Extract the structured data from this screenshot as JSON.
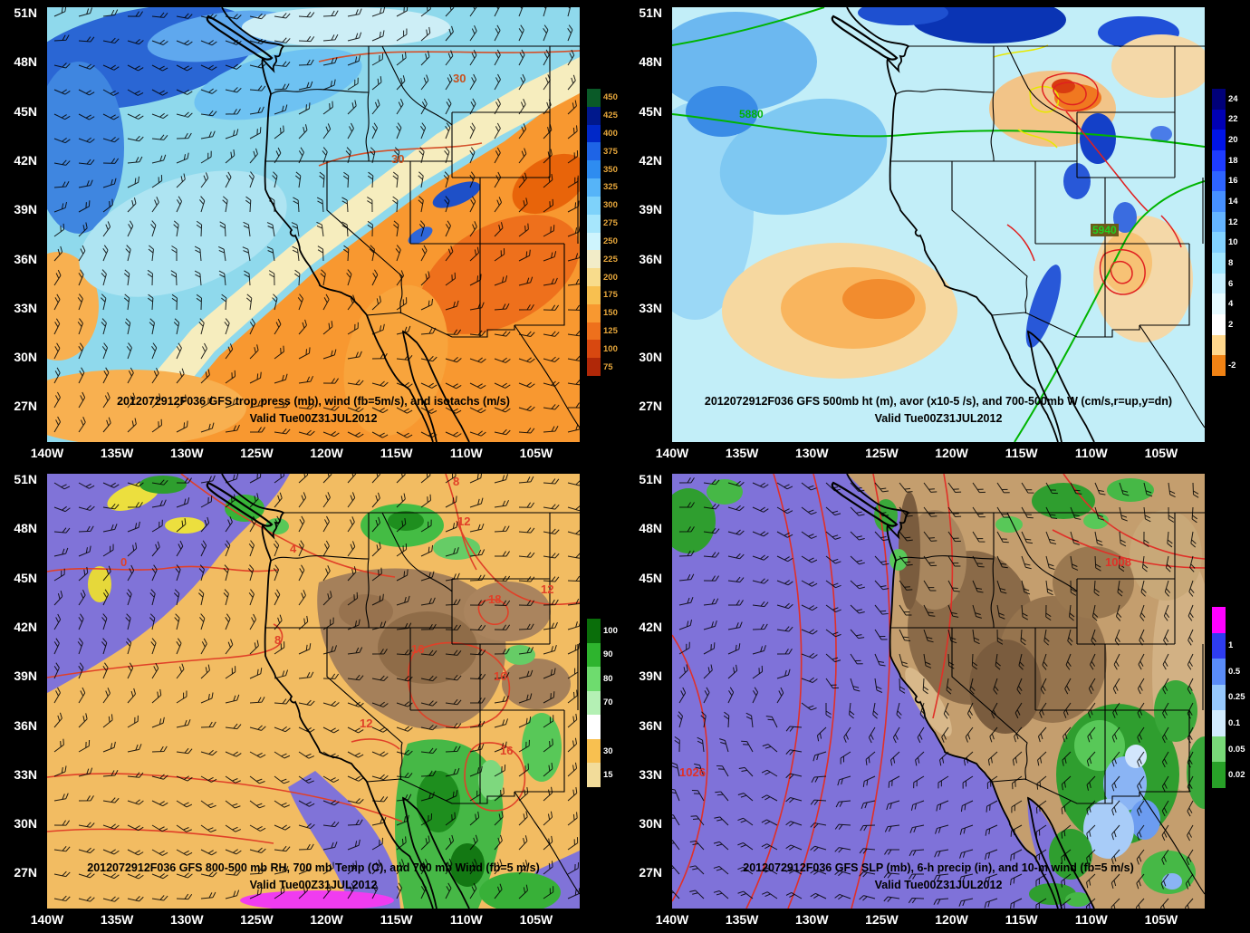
{
  "figure": {
    "background": "#000000",
    "description": "GFS 4-panel forecast graphic, western United States"
  },
  "shared": {
    "lat_ticks": [
      "51N",
      "48N",
      "45N",
      "42N",
      "39N",
      "36N",
      "33N",
      "30N",
      "27N"
    ],
    "lon_ticks": [
      "140W",
      "135W",
      "130W",
      "125W",
      "120W",
      "115W",
      "110W",
      "105W"
    ]
  },
  "panels": [
    {
      "key": "trop-press-wind-isotachs",
      "title": "2012072912F036 GFS trop press (mb), wind (fb=5m/s), and isotachs (m/s)",
      "valid": "Valid Tue00Z31JUL2012",
      "colorbar": {
        "label_color": "#e8a83c",
        "labels": [
          "450",
          "425",
          "400",
          "375",
          "350",
          "325",
          "300",
          "275",
          "250",
          "225",
          "200",
          "175",
          "150",
          "125",
          "100",
          "75"
        ],
        "colors": [
          "#0a5a28",
          "#00188c",
          "#0028c8",
          "#1e64e6",
          "#2e8cf0",
          "#56b4f8",
          "#7ed2fa",
          "#a6e6fc",
          "#cef4fd",
          "#f2ecc8",
          "#f8dc8c",
          "#f8c050",
          "#f89830",
          "#ee701c",
          "#d84810",
          "#b02808"
        ]
      },
      "contour_labels": [
        {
          "text": "30",
          "color": "#c8501e"
        },
        {
          "text": "30",
          "color": "#c8501e"
        }
      ]
    },
    {
      "key": "500mb-height-vorticity-omega",
      "title": "2012072912F036 GFS 500mb ht (m), avor (x10-5 /s), and 700-500mb W (cm/s,r=up,y=dn)",
      "valid": "Valid Tue00Z31JUL2012",
      "colorbar": {
        "label_color": "#ffffff",
        "labels": [
          "24",
          "22",
          "20",
          "18",
          "16",
          "14",
          "12",
          "10",
          "8",
          "6",
          "4",
          "2",
          "",
          "-2"
        ],
        "colors": [
          "#000078",
          "#0000b4",
          "#0014e6",
          "#1e3cff",
          "#2e64ff",
          "#4690ff",
          "#64b4ff",
          "#82d2ff",
          "#a0e6ff",
          "#c8f0ff",
          "#e6faff",
          "#ffffff",
          "#ffd78c",
          "#f08214"
        ]
      },
      "contour_labels": [
        {
          "text": "5880",
          "color": "#00b400"
        },
        {
          "text": "5940",
          "color": "#20d020"
        }
      ]
    },
    {
      "key": "rh-700temp-700wind",
      "title": "2012072912F036 GFS 800-500 mb RH, 700 mb Temp (C), and 700 mb Wind (fb=5 m/s)",
      "valid": "Valid Tue00Z31JUL2012",
      "colorbar": {
        "label_color": "#ffffff",
        "labels": [
          "100",
          "90",
          "80",
          "70",
          "",
          "30",
          "15"
        ],
        "colors": [
          "#0a6e0a",
          "#2eb42e",
          "#6edc6e",
          "#b4f0b4",
          "#ffffff",
          "#f8c050",
          "#f2dc9a"
        ]
      },
      "contour_labels": [
        {
          "text": "8",
          "color": "#e04028"
        },
        {
          "text": "12",
          "color": "#e04028"
        },
        {
          "text": "4",
          "color": "#e04028"
        },
        {
          "text": "0",
          "color": "#e04028"
        },
        {
          "text": "8",
          "color": "#e04028"
        },
        {
          "text": "16",
          "color": "#e04028"
        },
        {
          "text": "18",
          "color": "#e04028"
        },
        {
          "text": "12",
          "color": "#e04028"
        },
        {
          "text": "16",
          "color": "#e04028"
        },
        {
          "text": "16",
          "color": "#e04028"
        },
        {
          "text": "12",
          "color": "#e04028"
        }
      ]
    },
    {
      "key": "slp-precip-10mwind",
      "title": "2012072912F036 GFS SLP (mb), 6-h precip (in), and 10-m wind (fb=5 m/s)",
      "valid": "Valid Tue00Z31JUL2012",
      "colorbar": {
        "label_color": "#ffffff",
        "labels": [
          "",
          "1",
          "0.5",
          "0.25",
          "0.1",
          "0.05",
          "0.02"
        ],
        "colors": [
          "#ff00ff",
          "#2e3cf0",
          "#5a8cf8",
          "#96c8fc",
          "#d2ecfe",
          "#78d878",
          "#28a028"
        ]
      },
      "contour_labels": [
        {
          "text": "1008",
          "color": "#e03028"
        },
        {
          "text": "1026",
          "color": "#e03028"
        }
      ]
    }
  ]
}
